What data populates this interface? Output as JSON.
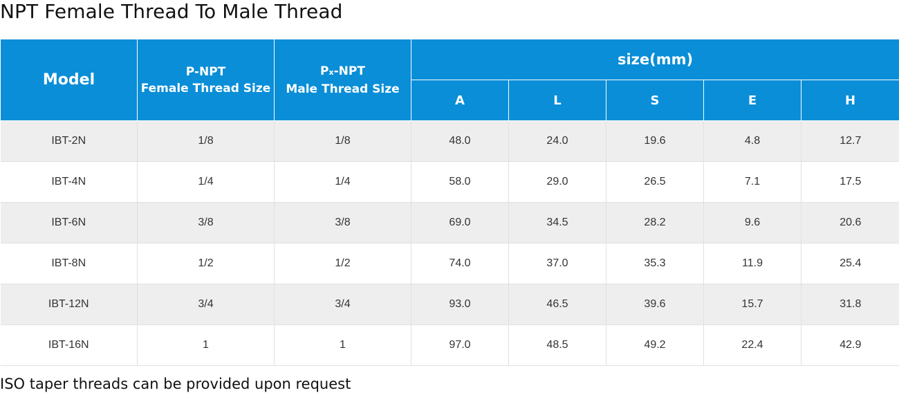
{
  "title": "NPT Female Thread To Male Thread",
  "header": {
    "model": "Model",
    "female_line1": "P-NPT",
    "female_line2": "Female Thread Size",
    "male_prefix": "P",
    "male_subscript": "x",
    "male_suffix": "-NPT",
    "male_line2": "Male Thread Size",
    "size_group": "size(mm)",
    "dims": [
      "A",
      "L",
      "S",
      "E",
      "H"
    ]
  },
  "rows": [
    {
      "model": "IBT-2N",
      "female": "1/8",
      "male": "1/8",
      "A": "48.0",
      "L": "24.0",
      "S": "19.6",
      "E": "4.8",
      "H": "12.7"
    },
    {
      "model": "IBT-4N",
      "female": "1/4",
      "male": "1/4",
      "A": "58.0",
      "L": "29.0",
      "S": "26.5",
      "E": "7.1",
      "H": "17.5"
    },
    {
      "model": "IBT-6N",
      "female": "3/8",
      "male": "3/8",
      "A": "69.0",
      "L": "34.5",
      "S": "28.2",
      "E": "9.6",
      "H": "20.6"
    },
    {
      "model": "IBT-8N",
      "female": "1/2",
      "male": "1/2",
      "A": "74.0",
      "L": "37.0",
      "S": "35.3",
      "E": "11.9",
      "H": "25.4"
    },
    {
      "model": "IBT-12N",
      "female": "3/4",
      "male": "3/4",
      "A": "93.0",
      "L": "46.5",
      "S": "39.6",
      "E": "15.7",
      "H": "31.8"
    },
    {
      "model": "IBT-16N",
      "female": "1",
      "male": "1",
      "A": "97.0",
      "L": "48.5",
      "S": "49.2",
      "E": "22.4",
      "H": "42.9"
    }
  ],
  "note": "ISO taper threads can be provided upon request",
  "colors": {
    "header_bg": "#0a8ed7",
    "row_alt_bg": "#eeeeee"
  }
}
